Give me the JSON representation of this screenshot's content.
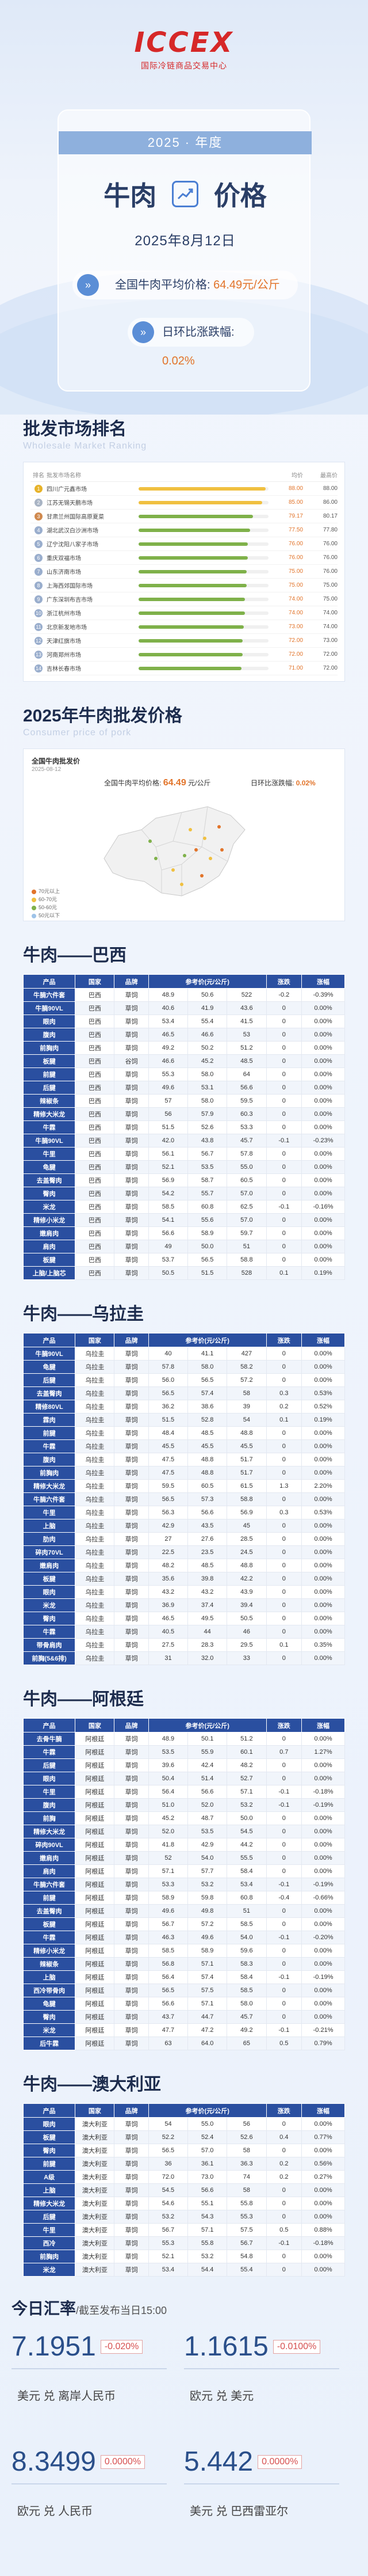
{
  "logo": {
    "text": "ICCEX",
    "sub": "国际冷链商品交易中心"
  },
  "hero": {
    "year": "2025 · 年度",
    "title_a": "牛肉",
    "title_b": "价格",
    "date": "2025年8月12日",
    "avg_label": "全国牛肉平均价格:",
    "avg_value": "64.49元/公斤",
    "chg_label": "日环比涨跌幅:",
    "chg_value": "0.02%"
  },
  "ranking": {
    "title": "批发市场排名",
    "sub": "Wholesale Market Ranking",
    "headers": [
      "排名",
      "批发市场名称",
      "",
      "均价",
      "最高价"
    ],
    "rows": [
      {
        "n": "1",
        "name": "四川广元鑫市场",
        "pct": 98,
        "p1": "88.00",
        "p2": "88.00"
      },
      {
        "n": "2",
        "name": "江苏无锡天鹏市场",
        "pct": 95,
        "p1": "85.00",
        "p2": "86.00"
      },
      {
        "n": "3",
        "name": "甘肃兰州国际高原夏菜",
        "pct": 88,
        "p1": "79.17",
        "p2": "80.17"
      },
      {
        "n": "4",
        "name": "湖北武汉白沙洲市场",
        "pct": 86,
        "p1": "77.50",
        "p2": "77.80"
      },
      {
        "n": "5",
        "name": "辽宁沈阳八家子市场",
        "pct": 84,
        "p1": "76.00",
        "p2": "76.00"
      },
      {
        "n": "6",
        "name": "重庆双福市场",
        "pct": 84,
        "p1": "76.00",
        "p2": "76.00"
      },
      {
        "n": "7",
        "name": "山东济南市场",
        "pct": 83,
        "p1": "75.00",
        "p2": "76.00"
      },
      {
        "n": "8",
        "name": "上海西郊国际市场",
        "pct": 83,
        "p1": "75.00",
        "p2": "75.00"
      },
      {
        "n": "9",
        "name": "广东深圳布吉市场",
        "pct": 82,
        "p1": "74.00",
        "p2": "75.00"
      },
      {
        "n": "10",
        "name": "浙江杭州市场",
        "pct": 82,
        "p1": "74.00",
        "p2": "74.00"
      },
      {
        "n": "11",
        "name": "北京新发地市场",
        "pct": 81,
        "p1": "73.00",
        "p2": "74.00"
      },
      {
        "n": "12",
        "name": "天津红旗市场",
        "pct": 80,
        "p1": "72.00",
        "p2": "73.00"
      },
      {
        "n": "13",
        "name": "河南郑州市场",
        "pct": 80,
        "p1": "72.00",
        "p2": "72.00"
      },
      {
        "n": "14",
        "name": "吉林长春市场",
        "pct": 79,
        "p1": "71.00",
        "p2": "72.00"
      }
    ]
  },
  "map": {
    "section_title": "2025年牛肉批发价格",
    "section_sub": "Consumer price of pork",
    "card_title": "全国牛肉批发价",
    "card_date": "2025-08-12",
    "avg_label": "全国牛肉平均价格:",
    "avg_value": "64.49",
    "avg_unit": "元/公斤",
    "chg_label": "日环比涨跌幅:",
    "chg_value": "0.02%",
    "legend": [
      "70元以上",
      "60-70元",
      "50-60元",
      "50元以下"
    ]
  },
  "tables": [
    {
      "title": "牛肉——巴西",
      "headers": [
        "产品",
        "国家",
        "品牌",
        "参考价(元/公斤)",
        "",
        "",
        "涨跌",
        "涨幅"
      ],
      "rows": [
        [
          "牛腩六件套",
          "巴西",
          "草饲",
          "48.9",
          "50.6",
          "522",
          "-0.2",
          "-0.39%"
        ],
        [
          "牛腩90VL",
          "巴西",
          "草饲",
          "40.6",
          "41.9",
          "43.6",
          "0",
          "0.00%"
        ],
        [
          "眼肉",
          "巴西",
          "草饲",
          "53.4",
          "55.4",
          "41.5",
          "0",
          "0.00%"
        ],
        [
          "腹肉",
          "巴西",
          "草饲",
          "46.5",
          "46.6",
          "53",
          "0",
          "0.00%"
        ],
        [
          "前胸肉",
          "巴西",
          "草饲",
          "49.2",
          "50.2",
          "51.2",
          "0",
          "0.00%"
        ],
        [
          "板腱",
          "巴西",
          "谷饲",
          "46.6",
          "45.2",
          "48.5",
          "0",
          "0.00%"
        ],
        [
          "前腱",
          "巴西",
          "草饲",
          "55.3",
          "58.0",
          "64",
          "0",
          "0.00%"
        ],
        [
          "后腱",
          "巴西",
          "草饲",
          "49.6",
          "53.1",
          "56.6",
          "0",
          "0.00%"
        ],
        [
          "辣椒条",
          "巴西",
          "草饲",
          "57",
          "58.0",
          "59.5",
          "0",
          "0.00%"
        ],
        [
          "精修大米龙",
          "巴西",
          "草饲",
          "56",
          "57.9",
          "60.3",
          "0",
          "0.00%"
        ],
        [
          "牛霖",
          "巴西",
          "草饲",
          "51.5",
          "52.6",
          "53.3",
          "0",
          "0.00%"
        ],
        [
          "牛腩90VL",
          "巴西",
          "草饲",
          "42.0",
          "43.8",
          "45.7",
          "-0.1",
          "-0.23%"
        ],
        [
          "牛里",
          "巴西",
          "草饲",
          "56.1",
          "56.7",
          "57.8",
          "0",
          "0.00%"
        ],
        [
          "龟腱",
          "巴西",
          "草饲",
          "52.1",
          "53.5",
          "55.0",
          "0",
          "0.00%"
        ],
        [
          "去盖臀肉",
          "巴西",
          "草饲",
          "56.9",
          "58.7",
          "60.5",
          "0",
          "0.00%"
        ],
        [
          "臀肉",
          "巴西",
          "草饲",
          "54.2",
          "55.7",
          "57.0",
          "0",
          "0.00%"
        ],
        [
          "米龙",
          "巴西",
          "草饲",
          "58.5",
          "60.8",
          "62.5",
          "-0.1",
          "-0.16%"
        ],
        [
          "精修小米龙",
          "巴西",
          "草饲",
          "54.1",
          "55.6",
          "57.0",
          "0",
          "0.00%"
        ],
        [
          "嫩肩肉",
          "巴西",
          "草饲",
          "56.6",
          "58.9",
          "59.7",
          "0",
          "0.00%"
        ],
        [
          "肩肉",
          "巴西",
          "草饲",
          "49",
          "50.0",
          "51",
          "0",
          "0.00%"
        ],
        [
          "板腱",
          "巴西",
          "草饲",
          "53.7",
          "56.5",
          "58.8",
          "0",
          "0.00%"
        ],
        [
          "上脑/上脑芯",
          "巴西",
          "草饲",
          "50.5",
          "51.5",
          "528",
          "0.1",
          "0.19%"
        ]
      ]
    },
    {
      "title": "牛肉——乌拉圭",
      "headers": [
        "产品",
        "国家",
        "品牌",
        "参考价(元/公斤)",
        "",
        "",
        "涨跌",
        "涨幅"
      ],
      "rows": [
        [
          "牛腩90VL",
          "乌拉圭",
          "草饲",
          "40",
          "41.1",
          "427",
          "0",
          "0.00%"
        ],
        [
          "龟腱",
          "乌拉圭",
          "草饲",
          "57.8",
          "58.0",
          "58.2",
          "0",
          "0.00%"
        ],
        [
          "后腱",
          "乌拉圭",
          "草饲",
          "56.0",
          "56.5",
          "57.2",
          "0",
          "0.00%"
        ],
        [
          "去盖臀肉",
          "乌拉圭",
          "草饲",
          "56.5",
          "57.4",
          "58",
          "0.3",
          "0.53%"
        ],
        [
          "精修80VL",
          "乌拉圭",
          "草饲",
          "36.2",
          "38.6",
          "39",
          "0.2",
          "0.52%"
        ],
        [
          "霖肉",
          "乌拉圭",
          "草饲",
          "51.5",
          "52.8",
          "54",
          "0.1",
          "0.19%"
        ],
        [
          "前腱",
          "乌拉圭",
          "草饲",
          "48.4",
          "48.5",
          "48.8",
          "0",
          "0.00%"
        ],
        [
          "牛霖",
          "乌拉圭",
          "草饲",
          "45.5",
          "45.5",
          "45.5",
          "0",
          "0.00%"
        ],
        [
          "腹肉",
          "乌拉圭",
          "草饲",
          "47.5",
          "48.8",
          "51.7",
          "0",
          "0.00%"
        ],
        [
          "前胸肉",
          "乌拉圭",
          "草饲",
          "47.5",
          "48.8",
          "51.7",
          "0",
          "0.00%"
        ],
        [
          "精修大米龙",
          "乌拉圭",
          "草饲",
          "59.5",
          "60.5",
          "61.5",
          "1.3",
          "2.20%"
        ],
        [
          "牛腩六件套",
          "乌拉圭",
          "草饲",
          "56.5",
          "57.3",
          "58.8",
          "0",
          "0.00%"
        ],
        [
          "牛里",
          "乌拉圭",
          "草饲",
          "56.3",
          "56.6",
          "56.9",
          "0.3",
          "0.53%"
        ],
        [
          "上脑",
          "乌拉圭",
          "草饲",
          "42.9",
          "43.5",
          "45",
          "0",
          "0.00%"
        ],
        [
          "肋肉",
          "乌拉圭",
          "草饲",
          "27",
          "27.6",
          "28.5",
          "0",
          "0.00%"
        ],
        [
          "碎肉70VL",
          "乌拉圭",
          "草饲",
          "22.5",
          "23.5",
          "24.5",
          "0",
          "0.00%"
        ],
        [
          "嫩肩肉",
          "乌拉圭",
          "草饲",
          "48.2",
          "48.5",
          "48.8",
          "0",
          "0.00%"
        ],
        [
          "板腱",
          "乌拉圭",
          "草饲",
          "35.6",
          "39.8",
          "42.2",
          "0",
          "0.00%"
        ],
        [
          "眼肉",
          "乌拉圭",
          "草饲",
          "43.2",
          "43.2",
          "43.9",
          "0",
          "0.00%"
        ],
        [
          "米龙",
          "乌拉圭",
          "草饲",
          "36.9",
          "37.4",
          "39.4",
          "0",
          "0.00%"
        ],
        [
          "臀肉",
          "乌拉圭",
          "草饲",
          "46.5",
          "49.5",
          "50.5",
          "0",
          "0.00%"
        ],
        [
          "牛霖",
          "乌拉圭",
          "草饲",
          "40.5",
          "44",
          "46",
          "0",
          "0.00%"
        ],
        [
          "带骨肩肉",
          "乌拉圭",
          "草饲",
          "27.5",
          "28.3",
          "29.5",
          "0.1",
          "0.35%"
        ],
        [
          "前胸(5&6排)",
          "乌拉圭",
          "草饲",
          "31",
          "32.0",
          "33",
          "0",
          "0.00%"
        ]
      ]
    },
    {
      "title": "牛肉——阿根廷",
      "headers": [
        "产品",
        "国家",
        "品牌",
        "参考价(元/公斤)",
        "",
        "",
        "涨跌",
        "涨幅"
      ],
      "rows": [
        [
          "去骨牛腩",
          "阿根廷",
          "草饲",
          "48.9",
          "50.1",
          "51.2",
          "0",
          "0.00%"
        ],
        [
          "牛霖",
          "阿根廷",
          "草饲",
          "53.5",
          "55.9",
          "60.1",
          "0.7",
          "1.27%"
        ],
        [
          "后腱",
          "阿根廷",
          "草饲",
          "39.6",
          "42.4",
          "48.2",
          "0",
          "0.00%"
        ],
        [
          "眼肉",
          "阿根廷",
          "草饲",
          "50.4",
          "51.4",
          "52.7",
          "0",
          "0.00%"
        ],
        [
          "牛里",
          "阿根廷",
          "草饲",
          "56.4",
          "56.6",
          "57.1",
          "-0.1",
          "-0.18%"
        ],
        [
          "腹肉",
          "阿根廷",
          "草饲",
          "51.0",
          "52.0",
          "53.2",
          "-0.1",
          "-0.19%"
        ],
        [
          "前胸",
          "阿根廷",
          "草饲",
          "45.2",
          "48.7",
          "50.0",
          "0",
          "0.00%"
        ],
        [
          "精修大米龙",
          "阿根廷",
          "草饲",
          "52.0",
          "53.5",
          "54.5",
          "0",
          "0.00%"
        ],
        [
          "碎肉90VL",
          "阿根廷",
          "草饲",
          "41.8",
          "42.9",
          "44.2",
          "0",
          "0.00%"
        ],
        [
          "嫩肩肉",
          "阿根廷",
          "草饲",
          "52",
          "54.0",
          "55.5",
          "0",
          "0.00%"
        ],
        [
          "肩肉",
          "阿根廷",
          "草饲",
          "57.1",
          "57.7",
          "58.4",
          "0",
          "0.00%"
        ],
        [
          "牛腩六件套",
          "阿根廷",
          "草饲",
          "53.3",
          "53.2",
          "53.4",
          "-0.1",
          "-0.19%"
        ],
        [
          "前腱",
          "阿根廷",
          "草饲",
          "58.9",
          "59.8",
          "60.8",
          "-0.4",
          "-0.66%"
        ],
        [
          "去盖臀肉",
          "阿根廷",
          "草饲",
          "49.6",
          "49.8",
          "51",
          "0",
          "0.00%"
        ],
        [
          "板腱",
          "阿根廷",
          "草饲",
          "56.7",
          "57.2",
          "58.5",
          "0",
          "0.00%"
        ],
        [
          "牛霖",
          "阿根廷",
          "草饲",
          "46.3",
          "49.6",
          "54.0",
          "-0.1",
          "-0.20%"
        ],
        [
          "精修小米龙",
          "阿根廷",
          "草饲",
          "58.5",
          "58.9",
          "59.6",
          "0",
          "0.00%"
        ],
        [
          "辣椒条",
          "阿根廷",
          "草饲",
          "56.8",
          "57.1",
          "58.3",
          "0",
          "0.00%"
        ],
        [
          "上脑",
          "阿根廷",
          "草饲",
          "56.4",
          "57.4",
          "58.4",
          "-0.1",
          "-0.19%"
        ],
        [
          "西冷带骨肉",
          "阿根廷",
          "草饲",
          "56.5",
          "57.5",
          "58.5",
          "0",
          "0.00%"
        ],
        [
          "龟腱",
          "阿根廷",
          "草饲",
          "56.6",
          "57.1",
          "58.0",
          "0",
          "0.00%"
        ],
        [
          "臀肉",
          "阿根廷",
          "草饲",
          "43.7",
          "44.7",
          "45.7",
          "0",
          "0.00%"
        ],
        [
          "米龙",
          "阿根廷",
          "草饲",
          "47.7",
          "47.2",
          "49.2",
          "-0.1",
          "-0.21%"
        ],
        [
          "后牛霖",
          "阿根廷",
          "草饲",
          "63",
          "64.0",
          "65",
          "0.5",
          "0.79%"
        ]
      ]
    },
    {
      "title": "牛肉——澳大利亚",
      "headers": [
        "产品",
        "国家",
        "品牌",
        "参考价(元/公斤)",
        "",
        "",
        "涨跌",
        "涨幅"
      ],
      "rows": [
        [
          "眼肉",
          "澳大利亚",
          "草饲",
          "54",
          "55.0",
          "56",
          "0",
          "0.00%"
        ],
        [
          "板腱",
          "澳大利亚",
          "草饲",
          "52.2",
          "52.4",
          "52.6",
          "0.4",
          "0.77%"
        ],
        [
          "臀肉",
          "澳大利亚",
          "草饲",
          "56.5",
          "57.0",
          "58",
          "0",
          "0.00%"
        ],
        [
          "前腱",
          "澳大利亚",
          "草饲",
          "36",
          "36.1",
          "36.3",
          "0.2",
          "0.56%"
        ],
        [
          "A级",
          "澳大利亚",
          "草饲",
          "72.0",
          "73.0",
          "74",
          "0.2",
          "0.27%"
        ],
        [
          "上脑",
          "澳大利亚",
          "草饲",
          "54.5",
          "56.6",
          "58",
          "0",
          "0.00%"
        ],
        [
          "精修大米龙",
          "澳大利亚",
          "草饲",
          "54.6",
          "55.1",
          "55.8",
          "0",
          "0.00%"
        ],
        [
          "后腱",
          "澳大利亚",
          "草饲",
          "53.2",
          "54.3",
          "55.3",
          "0",
          "0.00%"
        ],
        [
          "牛里",
          "澳大利亚",
          "草饲",
          "56.7",
          "57.1",
          "57.5",
          "0.5",
          "0.88%"
        ],
        [
          "西冷",
          "澳大利亚",
          "草饲",
          "55.3",
          "55.8",
          "56.7",
          "-0.1",
          "-0.18%"
        ],
        [
          "前胸肉",
          "澳大利亚",
          "草饲",
          "52.1",
          "53.2",
          "54.8",
          "0",
          "0.00%"
        ],
        [
          "米龙",
          "澳大利亚",
          "草饲",
          "53.4",
          "54.4",
          "55.4",
          "0",
          "0.00%"
        ]
      ]
    }
  ],
  "fx": {
    "title": "今日汇率",
    "sub": "/截至发布当日15:00",
    "items": [
      {
        "value": "7.1951",
        "chg": "-0.020%",
        "label": "美元 兑 离岸人民币"
      },
      {
        "value": "1.1615",
        "chg": "-0.0100%",
        "label": "欧元 兑 美元"
      },
      {
        "value": "8.3499",
        "chg": "0.0000%",
        "label": "欧元 兑 人民币"
      },
      {
        "value": "5.442",
        "chg": "0.0000%",
        "label": "美元 兑 巴西雷亚尔"
      }
    ]
  },
  "colors": {
    "primary": "#2a4fa0",
    "accent": "#e2742a",
    "logo": "#d62828"
  }
}
